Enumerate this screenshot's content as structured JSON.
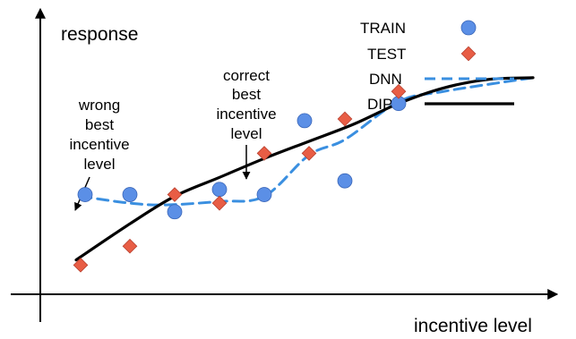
{
  "chart_data": {
    "type": "scatter",
    "xlabel": "incentive level",
    "ylabel": "response",
    "x_ticks": false,
    "y_ticks": false,
    "grid": false,
    "legend_position": "top-right",
    "series": [
      {
        "name": "TRAIN",
        "kind": "points",
        "marker": "circle",
        "color": "#5B8FE6",
        "points": [
          [
            1.0,
            2.6
          ],
          [
            2.0,
            2.6
          ],
          [
            3.0,
            2.1
          ],
          [
            4.0,
            2.75
          ],
          [
            5.0,
            2.6
          ],
          [
            5.9,
            4.75
          ],
          [
            6.8,
            3.0
          ],
          [
            8.0,
            5.25
          ]
        ]
      },
      {
        "name": "TEST",
        "kind": "points",
        "marker": "diamond",
        "color": "#E85D45",
        "points": [
          [
            0.9,
            0.55
          ],
          [
            2.0,
            1.1
          ],
          [
            3.0,
            2.6
          ],
          [
            4.0,
            2.35
          ],
          [
            5.0,
            3.8
          ],
          [
            6.0,
            3.8
          ],
          [
            6.8,
            4.8
          ],
          [
            8.0,
            5.6
          ]
        ]
      },
      {
        "name": "DNN",
        "kind": "line",
        "style": "dashed",
        "color": "#3A8FE0",
        "points": [
          [
            0.9,
            2.55
          ],
          [
            2.0,
            2.35
          ],
          [
            2.8,
            2.3
          ],
          [
            4.0,
            2.4
          ],
          [
            5.0,
            2.55
          ],
          [
            6.0,
            3.75
          ],
          [
            6.8,
            4.2
          ],
          [
            8.0,
            5.3
          ],
          [
            9.0,
            5.6
          ],
          [
            11.0,
            6.0
          ]
        ]
      },
      {
        "name": "DIPN",
        "kind": "line",
        "style": "solid",
        "color": "#000000",
        "points": [
          [
            0.8,
            0.7
          ],
          [
            2.0,
            1.75
          ],
          [
            3.0,
            2.55
          ],
          [
            4.0,
            3.1
          ],
          [
            5.0,
            3.65
          ],
          [
            6.0,
            4.15
          ],
          [
            7.0,
            4.65
          ],
          [
            8.0,
            5.25
          ],
          [
            9.0,
            5.7
          ],
          [
            10.0,
            5.95
          ],
          [
            11.0,
            6.0
          ]
        ]
      }
    ],
    "annotations": [
      {
        "lines": [
          "wrong",
          "best",
          "incentive",
          "level"
        ],
        "target": [
          1.0,
          2.6
        ]
      },
      {
        "lines": [
          "correct",
          "best",
          "incentive",
          "level"
        ],
        "target": [
          5.0,
          3.8
        ]
      }
    ],
    "xlim": [
      0,
      11.5
    ],
    "ylim": [
      -0.3,
      8.0
    ]
  }
}
